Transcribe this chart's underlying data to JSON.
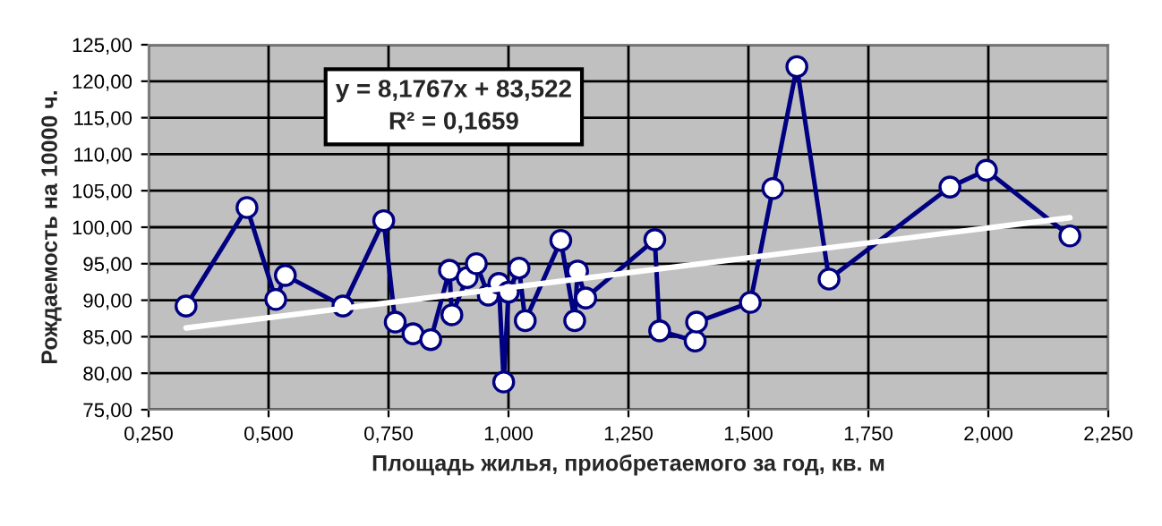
{
  "chart_data": {
    "type": "line",
    "xlabel": "Площадь жилья, приобретаемого за год, кв. м",
    "ylabel": "Рождаемость на 10000 ч.",
    "annotations": [
      "y = 8,1767x + 83,522\nR² = 0,1659"
    ],
    "series": [
      {
        "color": "#000080",
        "marker": "circle",
        "x": [
          0.328,
          0.455,
          0.515,
          0.535,
          0.655,
          0.74,
          0.764,
          0.801,
          0.838,
          0.877,
          0.882,
          0.914,
          0.933,
          0.958,
          0.98,
          0.99,
          1.0,
          1.022,
          1.035,
          1.109,
          1.138,
          1.144,
          1.161,
          1.305,
          1.315,
          1.389,
          1.392,
          1.504,
          1.551,
          1.601,
          1.668,
          1.92,
          1.996,
          2.17
        ],
        "values": [
          89.2,
          102.7,
          90.1,
          93.4,
          89.2,
          100.9,
          87.0,
          85.4,
          84.6,
          94.1,
          88.0,
          93.1,
          95.0,
          90.7,
          92.3,
          78.8,
          91.1,
          94.4,
          87.2,
          98.2,
          87.2,
          94.0,
          90.3,
          98.3,
          85.8,
          84.4,
          87.0,
          89.7,
          105.3,
          122.0,
          92.9,
          105.5,
          107.8,
          98.8
        ]
      },
      {
        "type": "line",
        "color": "#ffffff",
        "marker": "none",
        "x": [
          0.328,
          2.17
        ],
        "values": [
          86.2,
          101.3
        ]
      }
    ],
    "xlim": [
      0.25,
      2.25
    ],
    "xticks": [
      {
        "value": 0.25,
        "label": "0,250"
      },
      {
        "value": 0.5,
        "label": "0,500"
      },
      {
        "value": 0.75,
        "label": "0,750"
      },
      {
        "value": 1.0,
        "label": "1,000"
      },
      {
        "value": 1.25,
        "label": "1,250"
      },
      {
        "value": 1.5,
        "label": "1,500"
      },
      {
        "value": 1.75,
        "label": "1,750"
      },
      {
        "value": 2.0,
        "label": "2,000"
      },
      {
        "value": 2.25,
        "label": "2,250"
      }
    ],
    "ylim": [
      75,
      125
    ],
    "yticks": [
      {
        "value": 75,
        "label": "75,00"
      },
      {
        "value": 80,
        "label": "80,00"
      },
      {
        "value": 85,
        "label": "85,00"
      },
      {
        "value": 90,
        "label": "90,00"
      },
      {
        "value": 95,
        "label": "95,00"
      },
      {
        "value": 100,
        "label": "100,00"
      },
      {
        "value": 105,
        "label": "105,00"
      },
      {
        "value": 110,
        "label": "110,00"
      },
      {
        "value": 115,
        "label": "115,00"
      },
      {
        "value": 120,
        "label": "120,00"
      },
      {
        "value": 125,
        "label": "125,00"
      }
    ],
    "grid": true,
    "legend": false
  }
}
